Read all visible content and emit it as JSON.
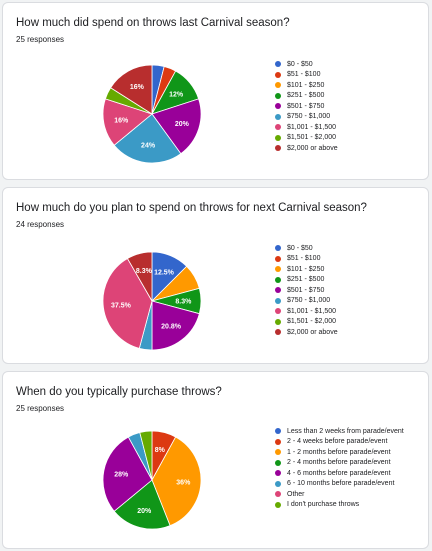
{
  "colors": [
    "#3366cc",
    "#dc3912",
    "#ff9900",
    "#109618",
    "#990099",
    "#3b9ac6",
    "#dd4477",
    "#66aa00",
    "#b82e2e"
  ],
  "cards": [
    {
      "title": "How much did spend on throws last Carnival season?",
      "responses": "25 responses",
      "chart_data": {
        "type": "pie",
        "categories": [
          "$0 - $50",
          "$51 - $100",
          "$101 - $250",
          "$251 - $500",
          "$501 - $750",
          "$750 - $1,000",
          "$1,001 - $1,500",
          "$1,501 - $2,000",
          "$2,000 or above"
        ],
        "values": [
          1,
          1,
          0,
          3,
          5,
          6,
          4,
          1,
          4
        ],
        "labels": [
          "",
          "",
          "",
          "12%",
          "20%",
          "24%",
          "16%",
          "",
          "16%"
        ],
        "legend": "right"
      }
    },
    {
      "title": "How much do you plan to spend on throws for next Carnival season?",
      "responses": "24 responses",
      "chart_data": {
        "type": "pie",
        "categories": [
          "$0 - $50",
          "$51 - $100",
          "$101 - $250",
          "$251 - $500",
          "$501 - $750",
          "$750 - $1,000",
          "$1,001 - $1,500",
          "$1,501 - $2,000",
          "$2,000 or above"
        ],
        "values": [
          3,
          0,
          2,
          2,
          5,
          1,
          9,
          0,
          2
        ],
        "labels": [
          "12.5%",
          "",
          "",
          "8.3%",
          "20.8%",
          "",
          "37.5%",
          "",
          "8.3%"
        ],
        "legend": "right"
      }
    },
    {
      "title": "When do you typically purchase throws?",
      "responses": "25 responses",
      "chart_data": {
        "type": "pie",
        "categories": [
          "Less than 2 weeks from parade/event",
          "2 - 4 weeks before parade/event",
          "1 - 2 months before parade/event",
          "2 - 4 months before parade/event",
          "4 - 6 months before parade/event",
          "6 - 10 months before parade/event",
          "Other",
          "I don't purchase throws"
        ],
        "values": [
          0,
          2,
          9,
          5,
          7,
          1,
          0,
          1
        ],
        "labels": [
          "",
          "8%",
          "36%",
          "20%",
          "28%",
          "",
          "",
          ""
        ],
        "legend": "right"
      }
    }
  ]
}
